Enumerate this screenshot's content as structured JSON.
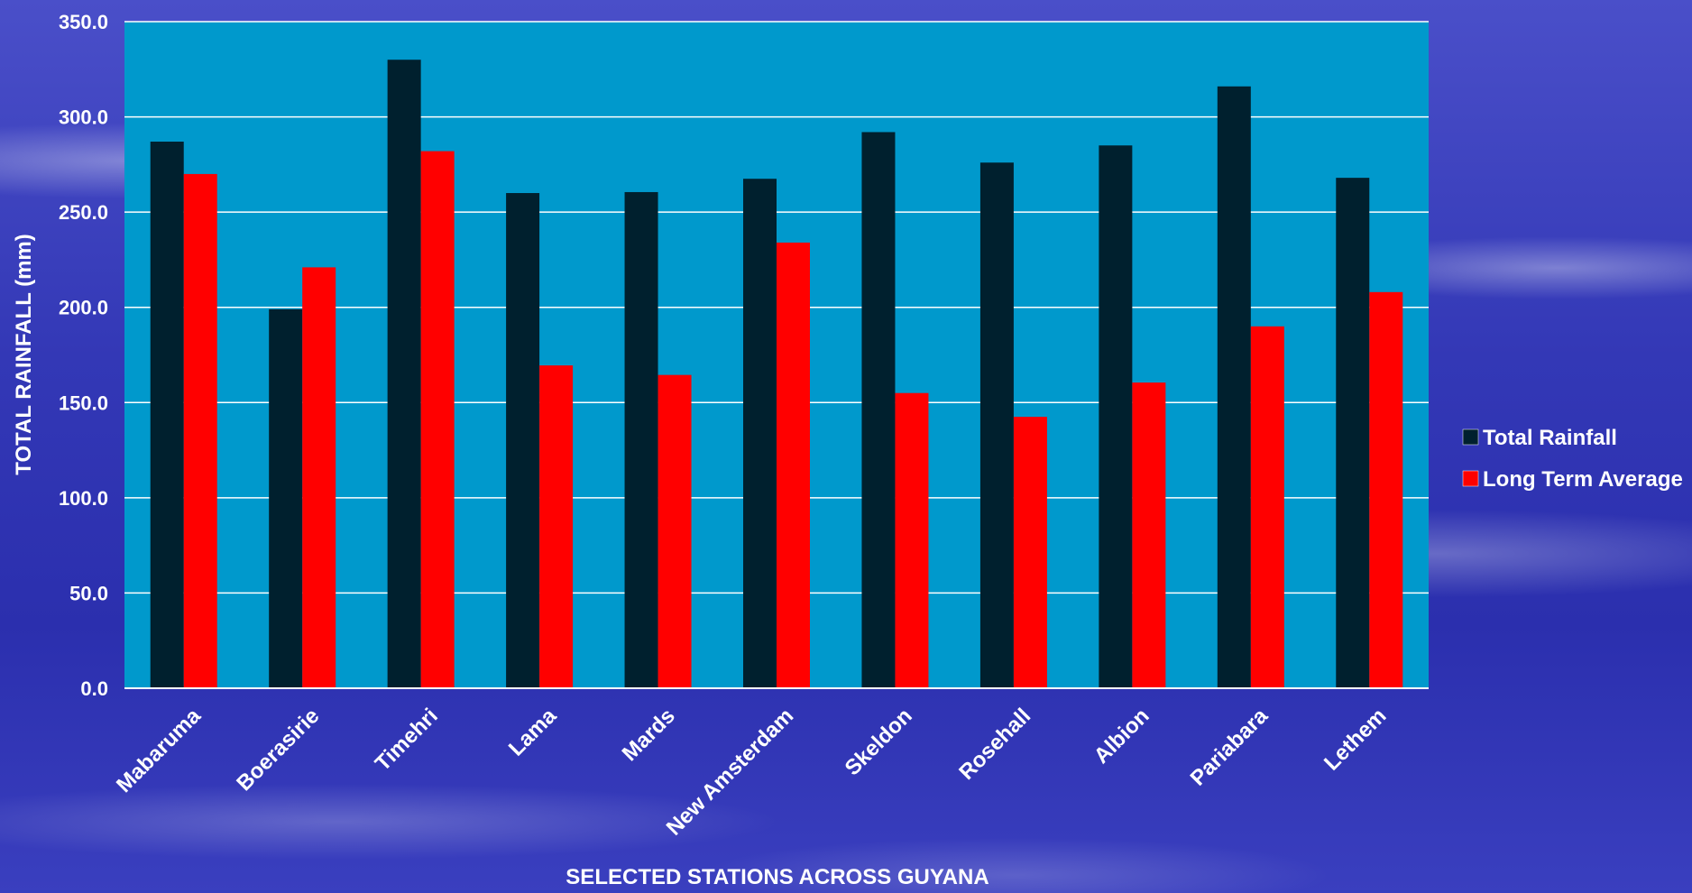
{
  "chart_data": {
    "type": "bar",
    "categories": [
      "Mabaruma",
      "Boerasirie",
      "Timehri",
      "Lama",
      "Mards",
      "New Amsterdam",
      "Skeldon",
      "Rosehall",
      "Albion",
      "Pariabara",
      "Lethem"
    ],
    "series": [
      {
        "name": "Total Rainfall",
        "color": "#00202e",
        "values": [
          287,
          199,
          330,
          260,
          260.5,
          267.5,
          292,
          276,
          285,
          316,
          268
        ]
      },
      {
        "name": "Long Term Average",
        "color": "#ff0000",
        "values": [
          270,
          221,
          282,
          169.5,
          164.5,
          234,
          155,
          142.5,
          160.5,
          190,
          208
        ]
      }
    ],
    "xlabel": "SELECTED STATIONS ACROSS GUYANA",
    "ylabel": "TOTAL RAINFALL (mm)",
    "ylim": [
      0,
      350
    ],
    "yticks": [
      "0.0",
      "50.0",
      "100.0",
      "150.0",
      "200.0",
      "250.0",
      "300.0",
      "350.0"
    ],
    "grid": true,
    "legend": "right",
    "plot_background": "#0099cc"
  }
}
